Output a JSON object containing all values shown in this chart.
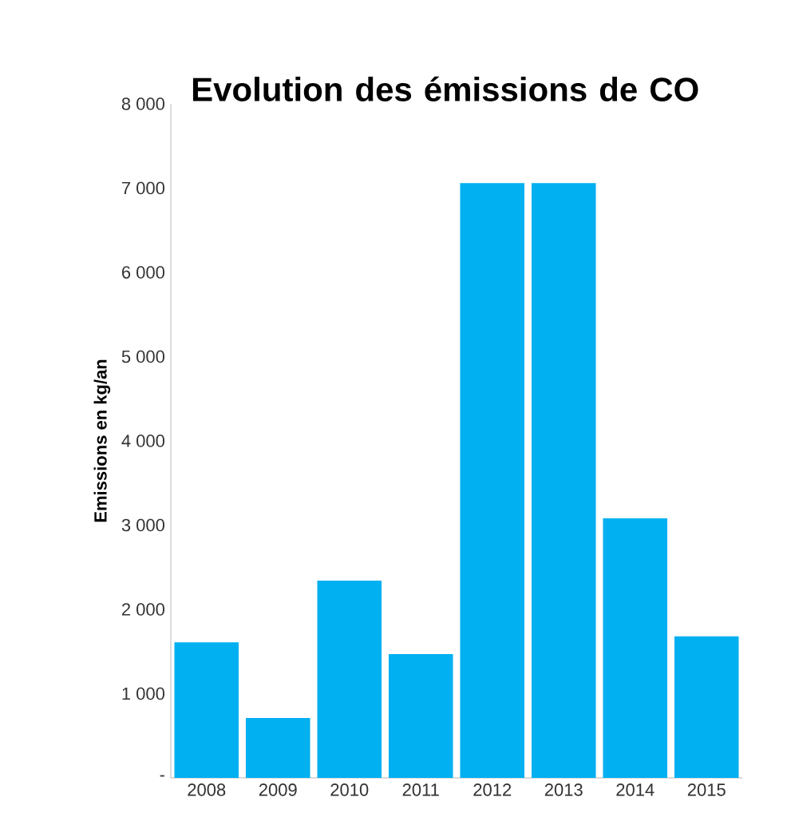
{
  "chart_data": {
    "type": "bar",
    "title": "Evolution des émissions de CO",
    "ylabel": "Emissions en kg/an",
    "categories": [
      "2008",
      "2009",
      "2010",
      "2011",
      "2012",
      "2013",
      "2014",
      "2015"
    ],
    "values": [
      1610,
      710,
      2340,
      1470,
      7060,
      7060,
      3080,
      1680
    ],
    "color": "#00b0f0",
    "ylim": [
      0,
      8000
    ],
    "yticks": [
      {
        "value": 0,
        "label": "-"
      },
      {
        "value": 1000,
        "label": "1 000"
      },
      {
        "value": 2000,
        "label": "2 000"
      },
      {
        "value": 3000,
        "label": "3 000"
      },
      {
        "value": 4000,
        "label": "4 000"
      },
      {
        "value": 5000,
        "label": "5 000"
      },
      {
        "value": 6000,
        "label": "6 000"
      },
      {
        "value": 7000,
        "label": "7 000"
      },
      {
        "value": 8000,
        "label": "8 000"
      }
    ],
    "grid": false
  }
}
